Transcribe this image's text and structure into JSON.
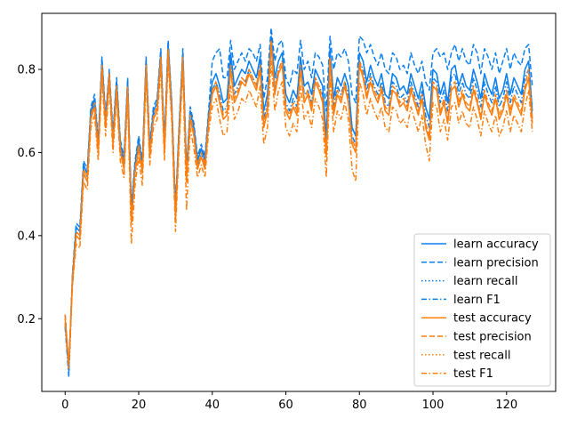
{
  "colors": {
    "learn": "#1f77b4",
    "learn_rendered": "#0a7ff0",
    "test": "#ff7f0e",
    "axes": "#000000",
    "legend_border": "#cccccc",
    "background": "#ffffff"
  },
  "chart_data": {
    "type": "line",
    "title": "",
    "xlabel": "",
    "ylabel": "",
    "xlim": [
      -6.35,
      133.35
    ],
    "ylim": [
      0.025,
      0.935
    ],
    "xticks": [
      0,
      20,
      40,
      60,
      80,
      100,
      120
    ],
    "xtick_labels": [
      "0",
      "20",
      "40",
      "60",
      "80",
      "100",
      "120"
    ],
    "yticks": [
      0.2,
      0.4,
      0.6,
      0.8
    ],
    "ytick_labels": [
      "0.2",
      "0.4",
      "0.6",
      "0.8"
    ],
    "grid": false,
    "legend_position": "lower-right",
    "x": [
      0,
      1,
      2,
      3,
      4,
      5,
      6,
      7,
      8,
      9,
      10,
      11,
      12,
      13,
      14,
      15,
      16,
      17,
      18,
      19,
      20,
      21,
      22,
      23,
      24,
      25,
      26,
      27,
      28,
      29,
      30,
      31,
      32,
      33,
      34,
      35,
      36,
      37,
      38,
      39,
      40,
      41,
      42,
      43,
      44,
      45,
      46,
      47,
      48,
      49,
      50,
      51,
      52,
      53,
      54,
      55,
      56,
      57,
      58,
      59,
      60,
      61,
      62,
      63,
      64,
      65,
      66,
      67,
      68,
      69,
      70,
      71,
      72,
      73,
      74,
      75,
      76,
      77,
      78,
      79,
      80,
      81,
      82,
      83,
      84,
      85,
      86,
      87,
      88,
      89,
      90,
      91,
      92,
      93,
      94,
      95,
      96,
      97,
      98,
      99,
      100,
      101,
      102,
      103,
      104,
      105,
      106,
      107,
      108,
      109,
      110,
      111,
      112,
      113,
      114,
      115,
      116,
      117,
      118,
      119,
      120,
      121,
      122,
      123,
      124,
      125,
      126,
      127
    ],
    "series": [
      {
        "name": "learn accuracy",
        "group": "learn",
        "dash": "solid",
        "values": [
          0.19,
          0.08,
          0.3,
          0.42,
          0.41,
          0.57,
          0.55,
          0.7,
          0.73,
          0.62,
          0.82,
          0.68,
          0.79,
          0.64,
          0.77,
          0.62,
          0.58,
          0.77,
          0.46,
          0.57,
          0.63,
          0.57,
          0.82,
          0.61,
          0.7,
          0.72,
          0.84,
          0.62,
          0.86,
          0.71,
          0.46,
          0.66,
          0.84,
          0.55,
          0.7,
          0.66,
          0.58,
          0.61,
          0.58,
          0.69,
          0.77,
          0.79,
          0.76,
          0.72,
          0.73,
          0.84,
          0.76,
          0.78,
          0.8,
          0.79,
          0.82,
          0.8,
          0.78,
          0.83,
          0.7,
          0.74,
          0.88,
          0.78,
          0.82,
          0.84,
          0.74,
          0.72,
          0.75,
          0.73,
          0.83,
          0.76,
          0.77,
          0.74,
          0.8,
          0.78,
          0.76,
          0.64,
          0.85,
          0.73,
          0.78,
          0.76,
          0.79,
          0.76,
          0.66,
          0.64,
          0.84,
          0.82,
          0.77,
          0.81,
          0.78,
          0.76,
          0.79,
          0.74,
          0.73,
          0.79,
          0.78,
          0.75,
          0.76,
          0.74,
          0.79,
          0.76,
          0.73,
          0.77,
          0.71,
          0.68,
          0.8,
          0.79,
          0.74,
          0.77,
          0.72,
          0.8,
          0.81,
          0.76,
          0.79,
          0.76,
          0.75,
          0.8,
          0.77,
          0.73,
          0.79,
          0.76,
          0.74,
          0.78,
          0.73,
          0.75,
          0.79,
          0.74,
          0.78,
          0.76,
          0.74,
          0.8,
          0.82,
          0.7
        ]
      },
      {
        "name": "learn precision",
        "group": "learn",
        "dash": "dashed",
        "values": [
          0.21,
          0.08,
          0.31,
          0.43,
          0.42,
          0.58,
          0.56,
          0.71,
          0.74,
          0.63,
          0.83,
          0.69,
          0.8,
          0.65,
          0.78,
          0.63,
          0.59,
          0.78,
          0.47,
          0.58,
          0.64,
          0.58,
          0.83,
          0.62,
          0.71,
          0.73,
          0.85,
          0.63,
          0.87,
          0.72,
          0.47,
          0.67,
          0.85,
          0.56,
          0.71,
          0.67,
          0.59,
          0.62,
          0.59,
          0.7,
          0.82,
          0.84,
          0.85,
          0.78,
          0.78,
          0.87,
          0.8,
          0.82,
          0.84,
          0.82,
          0.85,
          0.84,
          0.82,
          0.86,
          0.73,
          0.78,
          0.9,
          0.82,
          0.86,
          0.87,
          0.78,
          0.76,
          0.8,
          0.79,
          0.87,
          0.8,
          0.82,
          0.78,
          0.84,
          0.83,
          0.81,
          0.7,
          0.88,
          0.8,
          0.84,
          0.83,
          0.85,
          0.82,
          0.74,
          0.72,
          0.88,
          0.87,
          0.84,
          0.86,
          0.83,
          0.81,
          0.84,
          0.8,
          0.79,
          0.84,
          0.83,
          0.8,
          0.81,
          0.79,
          0.84,
          0.81,
          0.79,
          0.82,
          0.77,
          0.75,
          0.84,
          0.85,
          0.83,
          0.84,
          0.8,
          0.84,
          0.86,
          0.82,
          0.85,
          0.82,
          0.81,
          0.86,
          0.84,
          0.79,
          0.85,
          0.83,
          0.8,
          0.84,
          0.79,
          0.82,
          0.85,
          0.8,
          0.84,
          0.82,
          0.81,
          0.85,
          0.86,
          0.76
        ]
      },
      {
        "name": "learn recall",
        "group": "learn",
        "dash": "dotted",
        "values": [
          0.19,
          0.07,
          0.3,
          0.42,
          0.41,
          0.57,
          0.55,
          0.7,
          0.73,
          0.62,
          0.82,
          0.68,
          0.79,
          0.64,
          0.77,
          0.62,
          0.58,
          0.77,
          0.46,
          0.57,
          0.63,
          0.57,
          0.82,
          0.61,
          0.7,
          0.72,
          0.84,
          0.62,
          0.86,
          0.71,
          0.46,
          0.66,
          0.84,
          0.55,
          0.7,
          0.66,
          0.58,
          0.61,
          0.58,
          0.69,
          0.77,
          0.79,
          0.76,
          0.72,
          0.73,
          0.84,
          0.76,
          0.78,
          0.8,
          0.79,
          0.82,
          0.8,
          0.78,
          0.83,
          0.7,
          0.74,
          0.88,
          0.78,
          0.82,
          0.84,
          0.74,
          0.72,
          0.75,
          0.73,
          0.83,
          0.76,
          0.77,
          0.74,
          0.8,
          0.78,
          0.76,
          0.64,
          0.85,
          0.73,
          0.78,
          0.76,
          0.79,
          0.76,
          0.66,
          0.64,
          0.84,
          0.82,
          0.77,
          0.81,
          0.78,
          0.76,
          0.79,
          0.74,
          0.73,
          0.79,
          0.78,
          0.75,
          0.76,
          0.74,
          0.79,
          0.76,
          0.73,
          0.77,
          0.71,
          0.68,
          0.8,
          0.79,
          0.74,
          0.77,
          0.72,
          0.8,
          0.81,
          0.76,
          0.79,
          0.76,
          0.75,
          0.8,
          0.77,
          0.73,
          0.79,
          0.76,
          0.74,
          0.78,
          0.73,
          0.75,
          0.79,
          0.74,
          0.78,
          0.76,
          0.74,
          0.8,
          0.82,
          0.7
        ]
      },
      {
        "name": "learn F1",
        "group": "learn",
        "dash": "dashdot",
        "values": [
          0.18,
          0.06,
          0.29,
          0.41,
          0.4,
          0.56,
          0.54,
          0.69,
          0.72,
          0.61,
          0.81,
          0.67,
          0.78,
          0.63,
          0.76,
          0.61,
          0.57,
          0.76,
          0.45,
          0.56,
          0.62,
          0.56,
          0.81,
          0.6,
          0.69,
          0.71,
          0.83,
          0.61,
          0.85,
          0.7,
          0.45,
          0.65,
          0.83,
          0.54,
          0.69,
          0.65,
          0.57,
          0.6,
          0.57,
          0.68,
          0.75,
          0.77,
          0.74,
          0.7,
          0.71,
          0.82,
          0.74,
          0.76,
          0.78,
          0.77,
          0.8,
          0.78,
          0.76,
          0.81,
          0.68,
          0.72,
          0.86,
          0.76,
          0.8,
          0.82,
          0.72,
          0.7,
          0.73,
          0.71,
          0.81,
          0.74,
          0.75,
          0.72,
          0.78,
          0.76,
          0.74,
          0.62,
          0.83,
          0.71,
          0.76,
          0.74,
          0.77,
          0.74,
          0.64,
          0.62,
          0.82,
          0.8,
          0.75,
          0.79,
          0.76,
          0.74,
          0.77,
          0.72,
          0.71,
          0.77,
          0.76,
          0.73,
          0.74,
          0.72,
          0.77,
          0.74,
          0.71,
          0.75,
          0.69,
          0.66,
          0.78,
          0.77,
          0.72,
          0.75,
          0.7,
          0.78,
          0.79,
          0.74,
          0.77,
          0.74,
          0.73,
          0.78,
          0.75,
          0.71,
          0.77,
          0.74,
          0.72,
          0.76,
          0.71,
          0.73,
          0.77,
          0.72,
          0.76,
          0.74,
          0.72,
          0.78,
          0.8,
          0.68
        ]
      },
      {
        "name": "test accuracy",
        "group": "test",
        "dash": "solid",
        "values": [
          0.2,
          0.09,
          0.29,
          0.4,
          0.39,
          0.55,
          0.53,
          0.68,
          0.71,
          0.6,
          0.8,
          0.66,
          0.78,
          0.62,
          0.75,
          0.6,
          0.56,
          0.75,
          0.43,
          0.55,
          0.61,
          0.55,
          0.8,
          0.59,
          0.68,
          0.7,
          0.82,
          0.6,
          0.84,
          0.69,
          0.44,
          0.64,
          0.82,
          0.53,
          0.68,
          0.64,
          0.56,
          0.59,
          0.56,
          0.67,
          0.74,
          0.76,
          0.72,
          0.68,
          0.69,
          0.8,
          0.72,
          0.74,
          0.77,
          0.76,
          0.79,
          0.77,
          0.75,
          0.8,
          0.66,
          0.7,
          0.86,
          0.74,
          0.79,
          0.81,
          0.7,
          0.68,
          0.71,
          0.69,
          0.8,
          0.72,
          0.74,
          0.7,
          0.77,
          0.75,
          0.72,
          0.59,
          0.82,
          0.69,
          0.74,
          0.72,
          0.76,
          0.72,
          0.62,
          0.6,
          0.81,
          0.78,
          0.73,
          0.77,
          0.74,
          0.72,
          0.75,
          0.7,
          0.69,
          0.75,
          0.74,
          0.71,
          0.72,
          0.7,
          0.75,
          0.72,
          0.69,
          0.73,
          0.66,
          0.63,
          0.76,
          0.75,
          0.69,
          0.72,
          0.67,
          0.75,
          0.76,
          0.71,
          0.74,
          0.71,
          0.7,
          0.75,
          0.72,
          0.68,
          0.74,
          0.71,
          0.69,
          0.73,
          0.68,
          0.7,
          0.74,
          0.69,
          0.73,
          0.71,
          0.69,
          0.75,
          0.78,
          0.67
        ]
      },
      {
        "name": "test precision",
        "group": "test",
        "dash": "dashed",
        "values": [
          0.21,
          0.09,
          0.3,
          0.41,
          0.4,
          0.56,
          0.54,
          0.69,
          0.72,
          0.61,
          0.81,
          0.67,
          0.79,
          0.63,
          0.76,
          0.61,
          0.57,
          0.76,
          0.44,
          0.56,
          0.62,
          0.56,
          0.81,
          0.6,
          0.69,
          0.71,
          0.83,
          0.61,
          0.85,
          0.7,
          0.45,
          0.65,
          0.83,
          0.54,
          0.69,
          0.65,
          0.57,
          0.6,
          0.57,
          0.68,
          0.75,
          0.77,
          0.73,
          0.69,
          0.7,
          0.81,
          0.73,
          0.75,
          0.78,
          0.77,
          0.8,
          0.78,
          0.76,
          0.81,
          0.67,
          0.71,
          0.87,
          0.75,
          0.8,
          0.82,
          0.71,
          0.69,
          0.72,
          0.7,
          0.81,
          0.73,
          0.75,
          0.71,
          0.78,
          0.76,
          0.73,
          0.6,
          0.83,
          0.7,
          0.75,
          0.73,
          0.77,
          0.73,
          0.63,
          0.61,
          0.82,
          0.79,
          0.74,
          0.78,
          0.75,
          0.73,
          0.76,
          0.71,
          0.7,
          0.76,
          0.75,
          0.72,
          0.73,
          0.71,
          0.76,
          0.73,
          0.7,
          0.74,
          0.67,
          0.64,
          0.77,
          0.76,
          0.7,
          0.73,
          0.68,
          0.76,
          0.77,
          0.72,
          0.75,
          0.72,
          0.71,
          0.76,
          0.73,
          0.69,
          0.75,
          0.72,
          0.7,
          0.74,
          0.69,
          0.71,
          0.75,
          0.7,
          0.74,
          0.72,
          0.7,
          0.76,
          0.8,
          0.68
        ]
      },
      {
        "name": "test recall",
        "group": "test",
        "dash": "dotted",
        "values": [
          0.2,
          0.09,
          0.29,
          0.4,
          0.39,
          0.55,
          0.53,
          0.68,
          0.71,
          0.6,
          0.8,
          0.66,
          0.78,
          0.62,
          0.75,
          0.6,
          0.56,
          0.75,
          0.43,
          0.55,
          0.61,
          0.55,
          0.8,
          0.59,
          0.68,
          0.7,
          0.82,
          0.6,
          0.84,
          0.69,
          0.44,
          0.64,
          0.82,
          0.53,
          0.68,
          0.64,
          0.56,
          0.59,
          0.56,
          0.67,
          0.74,
          0.76,
          0.72,
          0.68,
          0.69,
          0.8,
          0.72,
          0.74,
          0.77,
          0.76,
          0.79,
          0.77,
          0.75,
          0.8,
          0.66,
          0.7,
          0.86,
          0.74,
          0.79,
          0.81,
          0.7,
          0.68,
          0.71,
          0.69,
          0.8,
          0.72,
          0.74,
          0.7,
          0.77,
          0.75,
          0.72,
          0.59,
          0.82,
          0.69,
          0.74,
          0.72,
          0.76,
          0.72,
          0.62,
          0.6,
          0.81,
          0.78,
          0.73,
          0.77,
          0.74,
          0.72,
          0.75,
          0.7,
          0.69,
          0.75,
          0.74,
          0.71,
          0.72,
          0.7,
          0.75,
          0.72,
          0.69,
          0.73,
          0.66,
          0.63,
          0.76,
          0.75,
          0.69,
          0.72,
          0.67,
          0.75,
          0.76,
          0.71,
          0.74,
          0.71,
          0.7,
          0.75,
          0.72,
          0.68,
          0.74,
          0.71,
          0.69,
          0.73,
          0.68,
          0.7,
          0.74,
          0.69,
          0.73,
          0.71,
          0.69,
          0.75,
          0.78,
          0.67
        ]
      },
      {
        "name": "test F1",
        "group": "test",
        "dash": "dashdot",
        "values": [
          0.19,
          0.08,
          0.28,
          0.38,
          0.37,
          0.53,
          0.51,
          0.66,
          0.69,
          0.58,
          0.78,
          0.64,
          0.76,
          0.6,
          0.73,
          0.58,
          0.54,
          0.73,
          0.38,
          0.52,
          0.59,
          0.52,
          0.78,
          0.57,
          0.66,
          0.68,
          0.8,
          0.58,
          0.82,
          0.67,
          0.41,
          0.62,
          0.8,
          0.46,
          0.66,
          0.61,
          0.54,
          0.57,
          0.54,
          0.65,
          0.71,
          0.73,
          0.68,
          0.64,
          0.65,
          0.76,
          0.68,
          0.7,
          0.73,
          0.72,
          0.75,
          0.73,
          0.71,
          0.76,
          0.62,
          0.66,
          0.82,
          0.7,
          0.75,
          0.77,
          0.66,
          0.64,
          0.67,
          0.65,
          0.76,
          0.68,
          0.7,
          0.66,
          0.73,
          0.71,
          0.68,
          0.54,
          0.78,
          0.65,
          0.7,
          0.68,
          0.72,
          0.68,
          0.56,
          0.53,
          0.77,
          0.74,
          0.69,
          0.73,
          0.7,
          0.68,
          0.71,
          0.66,
          0.65,
          0.71,
          0.7,
          0.67,
          0.68,
          0.66,
          0.71,
          0.68,
          0.65,
          0.69,
          0.62,
          0.58,
          0.72,
          0.71,
          0.65,
          0.68,
          0.63,
          0.71,
          0.72,
          0.67,
          0.7,
          0.67,
          0.66,
          0.71,
          0.68,
          0.64,
          0.7,
          0.67,
          0.65,
          0.69,
          0.64,
          0.66,
          0.7,
          0.65,
          0.69,
          0.67,
          0.65,
          0.71,
          0.75,
          0.65
        ]
      }
    ]
  }
}
